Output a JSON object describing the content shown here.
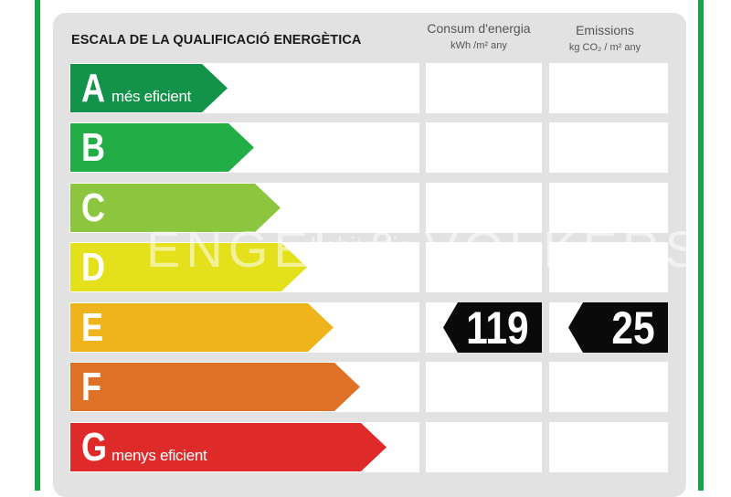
{
  "title": "ESCALA DE LA QUALIFICACIÓ ENERGÈTICA",
  "columns": {
    "consum": {
      "title": "Consum d'energia",
      "unit": "kWh /m² any"
    },
    "emissions": {
      "title": "Emissions",
      "unit": "kg CO₂ / m² any"
    }
  },
  "ratings": [
    {
      "letter": "A",
      "sublabel": "més eficient",
      "color": "#13934a"
    },
    {
      "letter": "B",
      "sublabel": "",
      "color": "#22ad47"
    },
    {
      "letter": "C",
      "sublabel": "",
      "color": "#8cc63f"
    },
    {
      "letter": "D",
      "sublabel": "",
      "color": "#e4e11c"
    },
    {
      "letter": "E",
      "sublabel": "",
      "color": "#efb31b"
    },
    {
      "letter": "F",
      "sublabel": "",
      "color": "#df7127"
    },
    {
      "letter": "G",
      "sublabel": "menys eficient",
      "color": "#df2a2a"
    }
  ],
  "result": {
    "rating": "E",
    "consum_value": "119",
    "emissions_value": "25"
  },
  "watermark": {
    "text": "ENGEL & VÖLKERS",
    "secondary": "habitaclia"
  }
}
